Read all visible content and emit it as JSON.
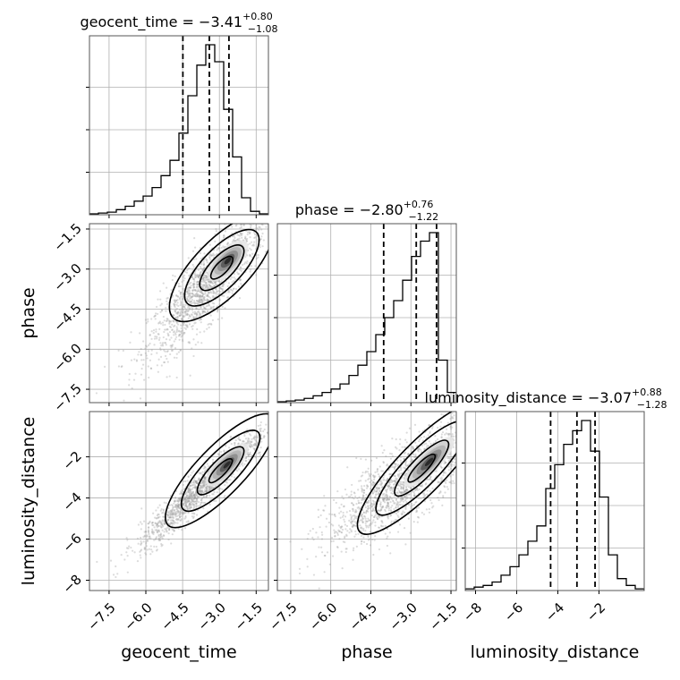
{
  "chart_data": {
    "type": "corner",
    "parameters": [
      "geocent_time",
      "phase",
      "luminosity_distance"
    ],
    "axis_labels": {
      "geocent_time": "geocent_time",
      "phase": "phase",
      "luminosity_distance": "luminosity_distance"
    },
    "ranges": {
      "geocent_time": [
        -8.3,
        -1.0
      ],
      "phase": [
        -8.0,
        -1.3
      ],
      "luminosity_distance": [
        -8.5,
        0.2
      ]
    },
    "tick_values": {
      "geocent_time": [
        -7.5,
        -6.0,
        -4.5,
        -3.0,
        -1.5
      ],
      "phase": [
        -7.5,
        -6.0,
        -4.5,
        -3.0,
        -1.5
      ],
      "luminosity_distance": [
        -8,
        -6,
        -4,
        -2
      ]
    },
    "tick_labels": {
      "geocent_time": [
        "−7.5",
        "−6.0",
        "−4.5",
        "−3.0",
        "−1.5"
      ],
      "phase": [
        "−7.5",
        "−6.0",
        "−4.5",
        "−3.0",
        "−1.5"
      ],
      "luminosity_distance": [
        "−8",
        "−6",
        "−4",
        "−2"
      ]
    },
    "titles": {
      "geocent_time": {
        "prefix": "geocent_time = ",
        "median": "−3.41",
        "plus": "+0.80",
        "minus": "−1.08"
      },
      "phase": {
        "prefix": "phase = ",
        "median": "−2.80",
        "plus": "+0.76",
        "minus": "−1.22"
      },
      "luminosity_distance": {
        "prefix": "luminosity_distance = ",
        "median": "−3.07",
        "plus": "+0.88",
        "minus": "−1.28"
      }
    },
    "quantile_lines": {
      "geocent_time": [
        -4.49,
        -3.41,
        -2.61
      ],
      "phase": [
        -4.02,
        -2.8,
        -2.04
      ],
      "luminosity_distance": [
        -4.35,
        -3.07,
        -2.19
      ]
    },
    "histograms": {
      "geocent_time": {
        "range": [
          -8.3,
          -1.0
        ],
        "counts": [
          0.5,
          1,
          1.5,
          3,
          5,
          8,
          11,
          16,
          23,
          32,
          48,
          70,
          88,
          100,
          90,
          62,
          34,
          10,
          2,
          0.5
        ]
      },
      "phase": {
        "range": [
          -8.0,
          -1.3
        ],
        "counts": [
          0.5,
          1,
          1.5,
          2.5,
          4,
          6,
          8,
          11,
          16,
          22,
          30,
          40,
          50,
          60,
          72,
          86,
          95,
          100,
          25,
          6
        ]
      },
      "luminosity_distance": {
        "range": [
          -8.5,
          0.2
        ],
        "counts": [
          1,
          2,
          3,
          5,
          9,
          14,
          21,
          29,
          38,
          60,
          74,
          86,
          94,
          100,
          82,
          55,
          21,
          7,
          3,
          1
        ]
      }
    },
    "joint": {
      "phase|geocent_time": {
        "mean": [
          -3.5,
          -3.6
        ],
        "sd": [
          1.2,
          1.3
        ],
        "corr": 0.85
      },
      "luminosity_distance|geocent_time": {
        "mean": [
          -3.6,
          -3.4
        ],
        "sd": [
          1.3,
          1.45
        ],
        "corr": 0.95
      },
      "luminosity_distance|phase": {
        "mean": [
          -3.3,
          -3.3
        ],
        "sd": [
          1.4,
          1.5
        ],
        "corr": 0.8
      }
    },
    "grid": true,
    "colors": {
      "hist": "#000000",
      "points": "#9a9a9a",
      "contours": "#000000",
      "grid": "#b0b0b0"
    }
  }
}
